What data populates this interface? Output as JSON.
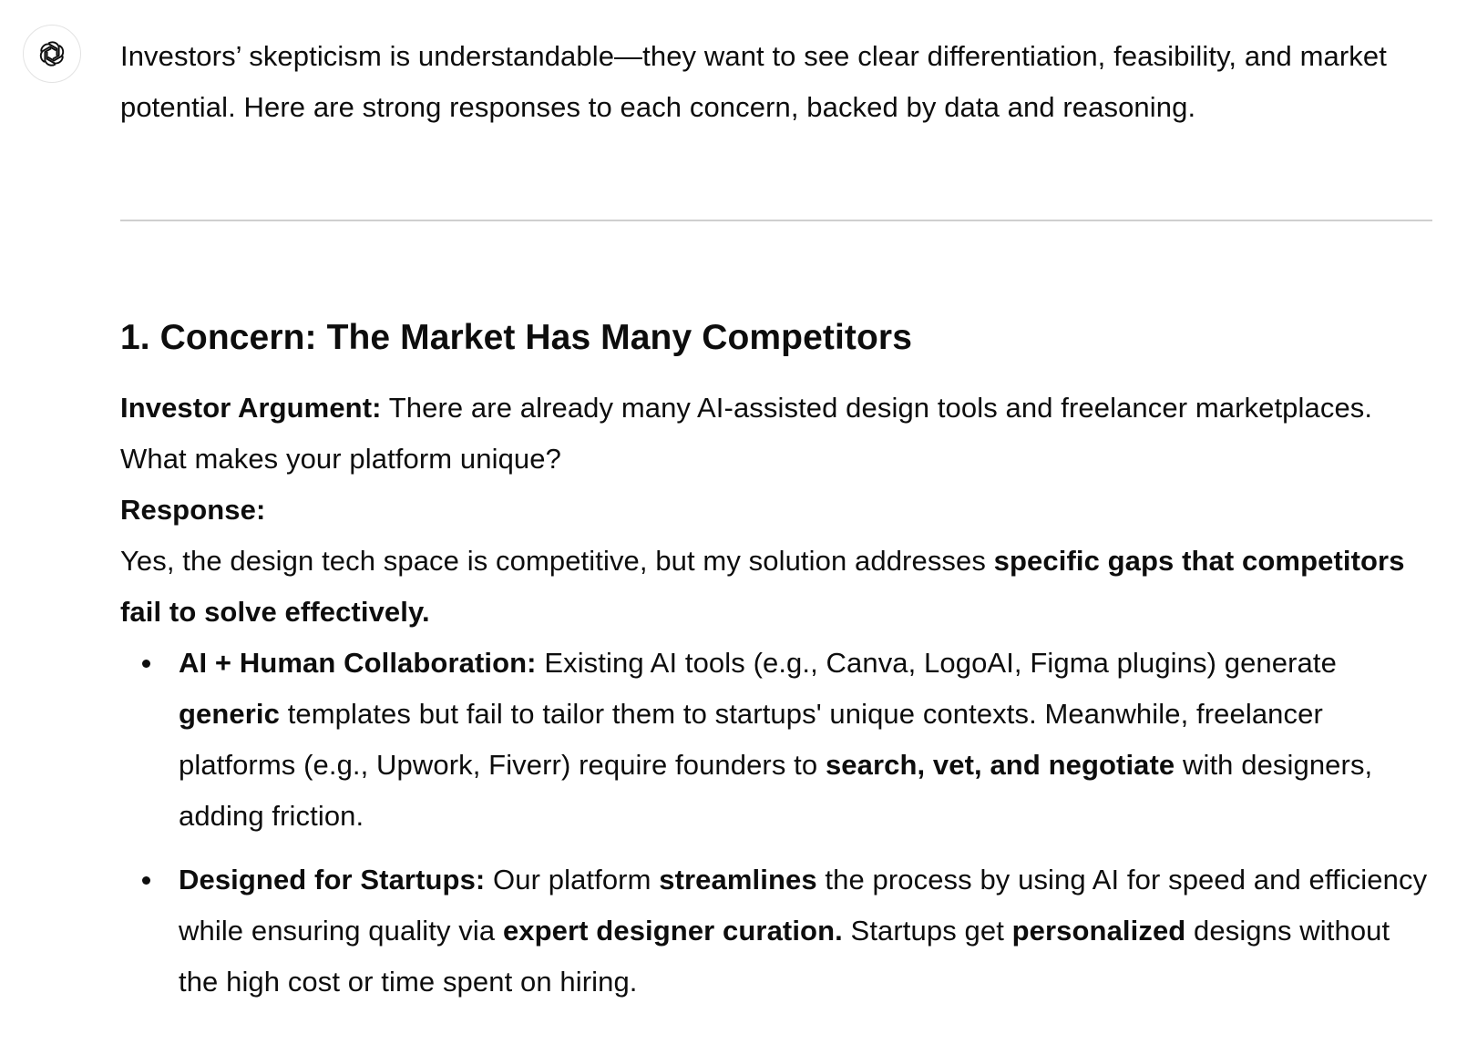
{
  "assistant": {
    "avatar_icon": "openai-logo-icon"
  },
  "message": {
    "intro": "Investors’ skepticism is understandable—they want to see clear differentiation, feasibility, and market potential. Here are strong responses to each concern, backed by data and reasoning.",
    "section_heading": "1. Concern: The Market Has Many Competitors",
    "argument": {
      "label": "Investor Argument:",
      "text": " There are already many AI-assisted design tools and freelancer marketplaces. What makes your platform unique?"
    },
    "response": {
      "label": "Response:",
      "text_plain": "Yes, the design tech space is competitive, but my solution addresses ",
      "text_bold": "specific gaps that competitors fail to solve effectively."
    },
    "bullets": [
      {
        "label": "AI + Human Collaboration:",
        "t1": " Existing AI tools (e.g., Canva, LogoAI, Figma plugins) generate ",
        "b1": "generic",
        "t2": " templates but fail to tailor them to startups' unique contexts. Meanwhile, freelancer platforms (e.g., Upwork, Fiverr) require founders to ",
        "b2": "search, vet, and negotiate",
        "t3": " with designers, adding friction."
      },
      {
        "label": "Designed for Startups:",
        "t1": " Our platform ",
        "b1": "streamlines",
        "t2": " the process by using AI for speed and efficiency while ensuring quality via ",
        "b2": "expert designer curation.",
        "t3": " Startups get ",
        "b3": "personalized",
        "t4": " designs without the high cost or time spent on hiring."
      }
    ]
  }
}
